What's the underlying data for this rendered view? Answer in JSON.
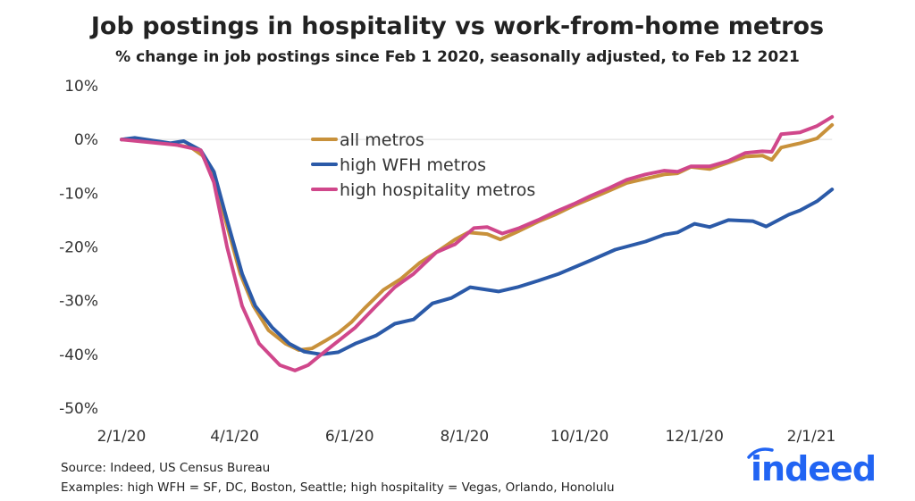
{
  "title": "Job postings in hospitality vs work-from-home metros",
  "subtitle": "% change in job postings since Feb 1 2020, seasonally adjusted, to Feb 12 2021",
  "source": "Source: Indeed, US Census Bureau",
  "examples": "Examples: high WFH = SF, DC, Boston, Seattle; high hospitality = Vegas, Orlando, Honolulu",
  "logo_text": "indeed",
  "logo_color": "#2164f3",
  "chart_data": {
    "type": "line",
    "title": "Job postings in hospitality vs work-from-home metros",
    "xlabel": "",
    "ylabel": "",
    "ylim": [
      -50,
      10
    ],
    "y_ticks": [
      10,
      0,
      -10,
      -20,
      -30,
      -40,
      -50
    ],
    "y_tick_labels": [
      "10%",
      "0%",
      "-10%",
      "-20%",
      "-30%",
      "-40%",
      "-50%"
    ],
    "x_ticks": [
      "2020-02-01",
      "2020-04-01",
      "2020-06-01",
      "2020-08-01",
      "2020-10-01",
      "2020-12-01",
      "2021-02-01"
    ],
    "x_tick_labels": [
      "2/1/20",
      "4/1/20",
      "6/1/20",
      "8/1/20",
      "10/1/20",
      "12/1/20",
      "2/1/21"
    ],
    "xlim": [
      "2020-02-01",
      "2021-02-12"
    ],
    "grid": "zero line only",
    "legend_position": "top-center",
    "series": [
      {
        "name": "all metros",
        "color": "#c8913b",
        "x": [
          "2020-02-01",
          "2020-02-08",
          "2020-02-27",
          "2020-03-09",
          "2020-03-15",
          "2020-03-21",
          "2020-03-28",
          "2020-04-04",
          "2020-04-11",
          "2020-04-19",
          "2020-04-28",
          "2020-05-05",
          "2020-05-12",
          "2020-05-19",
          "2020-05-26",
          "2020-06-02",
          "2020-06-09",
          "2020-06-19",
          "2020-06-28",
          "2020-07-08",
          "2020-07-17",
          "2020-07-27",
          "2020-08-03",
          "2020-08-13",
          "2020-08-20",
          "2020-08-30",
          "2020-09-09",
          "2020-09-18",
          "2020-09-28",
          "2020-10-07",
          "2020-10-17",
          "2020-10-26",
          "2020-11-05",
          "2020-11-15",
          "2020-11-22",
          "2020-11-29",
          "2020-12-09",
          "2020-12-19",
          "2020-12-28",
          "2021-01-06",
          "2021-01-11",
          "2021-01-16",
          "2021-01-26",
          "2021-02-04",
          "2021-02-12"
        ],
        "y": [
          0,
          0.2,
          -0.8,
          -1.5,
          -3,
          -7,
          -16,
          -25,
          -31,
          -35.5,
          -38,
          -39.2,
          -38.9,
          -37.5,
          -36,
          -34,
          -31.4,
          -28,
          -26,
          -23,
          -21,
          -18.6,
          -17.3,
          -17.6,
          -18.6,
          -17,
          -15.3,
          -14,
          -12.3,
          -11,
          -9.5,
          -8.1,
          -7.3,
          -6.5,
          -6.3,
          -5.1,
          -5.5,
          -4.3,
          -3.2,
          -3,
          -3.8,
          -1.5,
          -0.7,
          0.2,
          2.7
        ]
      },
      {
        "name": "high WFH metros",
        "color": "#2b5aa8",
        "x": [
          "2020-02-01",
          "2020-02-08",
          "2020-02-27",
          "2020-03-05",
          "2020-03-14",
          "2020-03-21",
          "2020-03-28",
          "2020-04-05",
          "2020-04-12",
          "2020-04-21",
          "2020-04-30",
          "2020-05-08",
          "2020-05-17",
          "2020-05-26",
          "2020-06-04",
          "2020-06-15",
          "2020-06-25",
          "2020-07-05",
          "2020-07-15",
          "2020-07-25",
          "2020-08-04",
          "2020-08-19",
          "2020-08-29",
          "2020-09-09",
          "2020-09-20",
          "2020-10-07",
          "2020-10-20",
          "2020-11-05",
          "2020-11-15",
          "2020-11-22",
          "2020-12-01",
          "2020-12-09",
          "2020-12-19",
          "2021-01-01",
          "2021-01-08",
          "2021-01-20",
          "2021-01-26",
          "2021-02-04",
          "2021-02-12"
        ],
        "y": [
          0,
          0.3,
          -0.7,
          -0.3,
          -2,
          -6,
          -15,
          -25,
          -31,
          -35,
          -38,
          -39.5,
          -40,
          -39.6,
          -38,
          -36.5,
          -34.3,
          -33.5,
          -30.5,
          -29.5,
          -27.5,
          -28.3,
          -27.5,
          -26.3,
          -25,
          -22.5,
          -20.5,
          -19,
          -17.7,
          -17.3,
          -15.7,
          -16.3,
          -15,
          -15.2,
          -16.2,
          -14,
          -13.2,
          -11.5,
          -9.3
        ]
      },
      {
        "name": "high hospitality metros",
        "color": "#d0478b",
        "x": [
          "2020-02-01",
          "2020-03-01",
          "2020-03-14",
          "2020-03-21",
          "2020-03-28",
          "2020-04-05",
          "2020-04-14",
          "2020-04-25",
          "2020-05-03",
          "2020-05-10",
          "2020-05-17",
          "2020-05-26",
          "2020-06-04",
          "2020-06-15",
          "2020-06-25",
          "2020-07-05",
          "2020-07-17",
          "2020-07-27",
          "2020-08-06",
          "2020-08-13",
          "2020-08-21",
          "2020-08-30",
          "2020-09-09",
          "2020-09-18",
          "2020-09-28",
          "2020-10-07",
          "2020-10-17",
          "2020-10-26",
          "2020-11-05",
          "2020-11-15",
          "2020-11-22",
          "2020-11-29",
          "2020-12-09",
          "2020-12-19",
          "2020-12-28",
          "2021-01-06",
          "2021-01-11",
          "2021-01-16",
          "2021-01-26",
          "2021-02-04",
          "2021-02-12"
        ],
        "y": [
          0,
          -1,
          -2,
          -8,
          -20,
          -31,
          -38,
          -42,
          -43,
          -42,
          -40,
          -37.5,
          -35,
          -31,
          -27.5,
          -25,
          -21,
          -19.5,
          -16.5,
          -16.3,
          -17.5,
          -16.5,
          -15,
          -13.5,
          -12,
          -10.5,
          -9,
          -7.5,
          -6.5,
          -5.8,
          -6,
          -5,
          -5,
          -4,
          -2.5,
          -2.2,
          -2.3,
          1,
          1.3,
          2.5,
          4.2
        ]
      }
    ]
  }
}
